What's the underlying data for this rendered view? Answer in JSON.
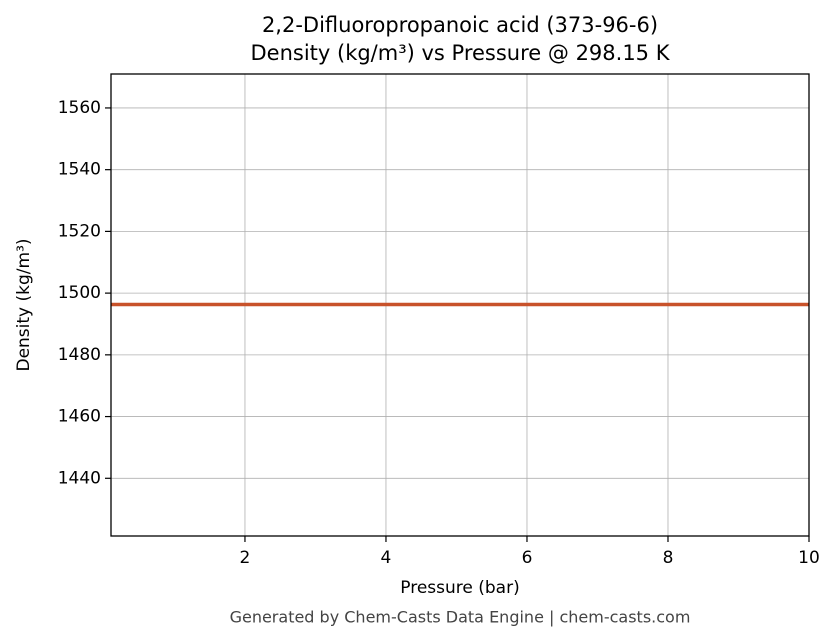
{
  "chart_data": {
    "type": "line",
    "title": "2,2-Difluoropropanoic acid (373-96-6)",
    "subtitle": "Density (kg/m³) vs Pressure @ 298.15 K",
    "x_label": "Pressure (bar)",
    "y_label": "Density (kg/m³)",
    "footer": "Generated by Chem-Casts Data Engine | chem-casts.com",
    "x": [
      0.1,
      10
    ],
    "series": [
      {
        "name": "Density",
        "color": "#c8522a",
        "values": [
          1496.3,
          1496.3
        ]
      }
    ],
    "xlim": [
      0.1,
      10
    ],
    "xticks": [
      2,
      4,
      6,
      8,
      10
    ],
    "ylim": [
      1421.3,
      1571.0
    ],
    "yticks": [
      1440,
      1460,
      1480,
      1500,
      1520,
      1540,
      1560
    ],
    "grid": true
  }
}
